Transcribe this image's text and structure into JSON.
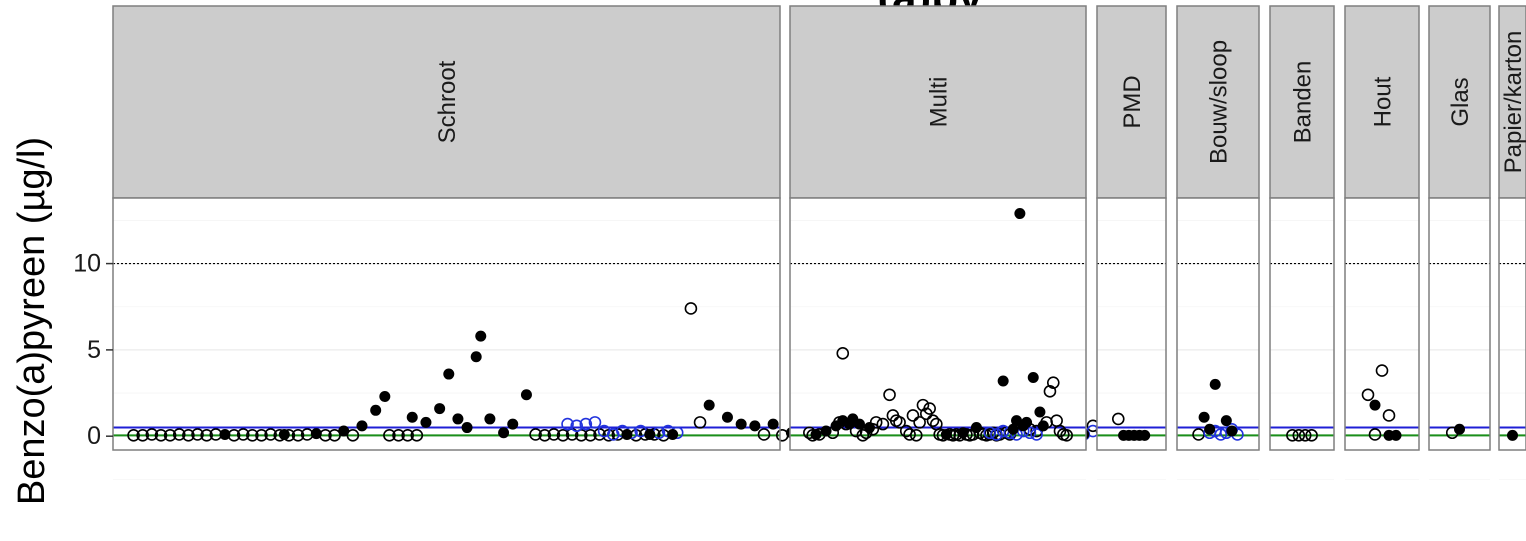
{
  "chart_data": {
    "type": "scatter",
    "title": "(a)py",
    "xlabel": "",
    "ylabel": "Benzo(a)pyreen (µg/l)",
    "ylim": [
      -0.8,
      13.8
    ],
    "yticks": [
      0,
      5,
      10
    ],
    "grid": true,
    "reference_lines": [
      {
        "value": 10,
        "color": "#000000",
        "style": "dotted"
      },
      {
        "value": 0.5,
        "color": "#1f1fd6",
        "style": "solid"
      },
      {
        "value": 0.05,
        "color": "#1a8f1a",
        "style": "solid"
      }
    ],
    "colors": {
      "filled": "#000000",
      "open": "#000000",
      "open_blue": "#2233dd",
      "strip_bg": "#cccccc",
      "panel_border": "#7f7f7f"
    },
    "panels": [
      {
        "name": "Schroot",
        "n": 140,
        "filled": [
          [
            22,
            0.1
          ],
          [
            35,
            0.1
          ],
          [
            42,
            0.15
          ],
          [
            48,
            0.3
          ],
          [
            52,
            0.6
          ],
          [
            55,
            1.5
          ],
          [
            57,
            2.3
          ],
          [
            63,
            1.1
          ],
          [
            66,
            0.8
          ],
          [
            69,
            1.6
          ],
          [
            71,
            3.6
          ],
          [
            73,
            1.0
          ],
          [
            75,
            0.5
          ],
          [
            77,
            4.6
          ],
          [
            78,
            5.8
          ],
          [
            80,
            1.0
          ],
          [
            83,
            0.2
          ],
          [
            85,
            0.7
          ],
          [
            88,
            2.4
          ],
          [
            110,
            0.1
          ],
          [
            115,
            0.1
          ],
          [
            120,
            0.1
          ],
          [
            128,
            1.8
          ],
          [
            132,
            1.1
          ],
          [
            135,
            0.7
          ],
          [
            138,
            0.6
          ],
          [
            142,
            0.7
          ],
          [
            146,
            0.2
          ],
          [
            150,
            0.1
          ],
          [
            156,
            0.6
          ],
          [
            158,
            1.4
          ],
          [
            160,
            2.0
          ],
          [
            164,
            0.6
          ],
          [
            166,
            1.8
          ],
          [
            168,
            0.7
          ],
          [
            170,
            0.8
          ],
          [
            173,
            0.8
          ],
          [
            176,
            0.4
          ],
          [
            182,
            0.2
          ],
          [
            186,
            0.8
          ],
          [
            200,
            0.1
          ],
          [
            205,
            0.5
          ],
          [
            210,
            0.1
          ]
        ],
        "open": [
          [
            2,
            0.05
          ],
          [
            4,
            0.05
          ],
          [
            6,
            0.1
          ],
          [
            8,
            0.05
          ],
          [
            10,
            0.05
          ],
          [
            12,
            0.1
          ],
          [
            14,
            0.05
          ],
          [
            16,
            0.1
          ],
          [
            18,
            0.05
          ],
          [
            20,
            0.1
          ],
          [
            24,
            0.05
          ],
          [
            26,
            0.1
          ],
          [
            28,
            0.05
          ],
          [
            30,
            0.05
          ],
          [
            32,
            0.1
          ],
          [
            34,
            0.05
          ],
          [
            36,
            0.05
          ],
          [
            38,
            0.05
          ],
          [
            40,
            0.1
          ],
          [
            44,
            0.05
          ],
          [
            46,
            0.05
          ],
          [
            50,
            0.05
          ],
          [
            58,
            0.05
          ],
          [
            60,
            0.05
          ],
          [
            62,
            0.05
          ],
          [
            64,
            0.05
          ],
          [
            90,
            0.1
          ],
          [
            92,
            0.05
          ],
          [
            94,
            0.1
          ],
          [
            96,
            0.05
          ],
          [
            98,
            0.1
          ],
          [
            100,
            0.05
          ],
          [
            102,
            0.05
          ],
          [
            104,
            0.1
          ],
          [
            106,
            0.05
          ],
          [
            108,
            0.1
          ],
          [
            112,
            0.05
          ],
          [
            114,
            0.1
          ],
          [
            116,
            0.1
          ],
          [
            118,
            0.05
          ],
          [
            124,
            7.4
          ],
          [
            126,
            0.8
          ],
          [
            140,
            0.1
          ],
          [
            144,
            0.05
          ],
          [
            148,
            0.1
          ],
          [
            152,
            0.05
          ],
          [
            154,
            0.1
          ],
          [
            162,
            0.05
          ],
          [
            178,
            0.1
          ],
          [
            180,
            0.05
          ],
          [
            184,
            0.05
          ],
          [
            188,
            0.05
          ],
          [
            190,
            0.1
          ],
          [
            192,
            0.05
          ],
          [
            194,
            0.1
          ],
          [
            196,
            0.05
          ],
          [
            198,
            0.05
          ],
          [
            202,
            0.1
          ],
          [
            204,
            0.05
          ],
          [
            206,
            0.1
          ],
          [
            208,
            0.05
          ],
          [
            212,
            0.6
          ],
          [
            214,
            0.3
          ],
          [
            216,
            0.9
          ],
          [
            218,
            0.1
          ],
          [
            220,
            0.05
          ],
          [
            222,
            0.1
          ]
        ],
        "open_blue": [
          [
            97,
            0.7
          ],
          [
            99,
            0.6
          ],
          [
            101,
            0.7
          ],
          [
            103,
            0.8
          ],
          [
            105,
            0.3
          ],
          [
            107,
            0.1
          ],
          [
            109,
            0.3
          ],
          [
            111,
            0.2
          ],
          [
            113,
            0.3
          ],
          [
            117,
            0.2
          ],
          [
            119,
            0.3
          ],
          [
            121,
            0.2
          ],
          [
            170,
            0.4
          ],
          [
            172,
            0.2
          ],
          [
            174,
            0.3
          ],
          [
            176,
            0.1
          ],
          [
            178,
            0.2
          ],
          [
            196,
            0.3
          ],
          [
            198,
            0.2
          ],
          [
            200,
            0.3
          ],
          [
            202,
            0.1
          ],
          [
            204,
            0.2
          ],
          [
            206,
            0.3
          ],
          [
            208,
            0.2
          ],
          [
            210,
            0.1
          ],
          [
            212,
            0.3
          ],
          [
            214,
            0.5
          ],
          [
            216,
            0.2
          ],
          [
            218,
            0.1
          ],
          [
            220,
            0.2
          ]
        ]
      },
      {
        "name": "Multi",
        "n": 80,
        "filled": [
          [
            4,
            0.1
          ],
          [
            7,
            0.3
          ],
          [
            10,
            0.6
          ],
          [
            12,
            0.9
          ],
          [
            14,
            0.7
          ],
          [
            15,
            1.0
          ],
          [
            17,
            0.7
          ],
          [
            20,
            0.5
          ],
          [
            43,
            0.1
          ],
          [
            48,
            0.2
          ],
          [
            52,
            0.5
          ],
          [
            60,
            3.2
          ],
          [
            63,
            0.4
          ],
          [
            64,
            0.9
          ],
          [
            65,
            12.9
          ],
          [
            66,
            0.6
          ],
          [
            67,
            0.8
          ],
          [
            69,
            3.4
          ],
          [
            71,
            1.4
          ],
          [
            72,
            0.6
          ]
        ],
        "open": [
          [
            2,
            0.2
          ],
          [
            3,
            0.05
          ],
          [
            5,
            0.1
          ],
          [
            9,
            0.2
          ],
          [
            11,
            0.8
          ],
          [
            12,
            4.8
          ],
          [
            13,
            0.7
          ],
          [
            16,
            0.3
          ],
          [
            18,
            0.05
          ],
          [
            19,
            0.2
          ],
          [
            21,
            0.4
          ],
          [
            22,
            0.8
          ],
          [
            24,
            0.7
          ],
          [
            26,
            2.4
          ],
          [
            27,
            1.2
          ],
          [
            28,
            0.9
          ],
          [
            29,
            0.8
          ],
          [
            31,
            0.3
          ],
          [
            32,
            0.1
          ],
          [
            33,
            1.2
          ],
          [
            34,
            0.05
          ],
          [
            35,
            0.8
          ],
          [
            36,
            1.8
          ],
          [
            37,
            1.3
          ],
          [
            38,
            1.6
          ],
          [
            39,
            0.9
          ],
          [
            40,
            0.7
          ],
          [
            41,
            0.1
          ],
          [
            42,
            0.05
          ],
          [
            44,
            0.1
          ],
          [
            45,
            0.05
          ],
          [
            46,
            0.1
          ],
          [
            47,
            0.05
          ],
          [
            49,
            0.1
          ],
          [
            50,
            0.05
          ],
          [
            51,
            0.1
          ],
          [
            53,
            0.2
          ],
          [
            54,
            0.1
          ],
          [
            55,
            0.05
          ],
          [
            56,
            0.1
          ],
          [
            57,
            0.2
          ],
          [
            58,
            0.05
          ],
          [
            59,
            0.1
          ],
          [
            61,
            0.2
          ],
          [
            62,
            0.1
          ],
          [
            68,
            0.4
          ],
          [
            70,
            0.3
          ],
          [
            73,
            0.8
          ],
          [
            74,
            2.6
          ],
          [
            75,
            3.1
          ],
          [
            76,
            0.9
          ],
          [
            77,
            0.3
          ],
          [
            78,
            0.1
          ],
          [
            79,
            0.05
          ]
        ],
        "open_blue": [
          [
            56,
            0.2
          ],
          [
            58,
            0.1
          ],
          [
            60,
            0.3
          ],
          [
            62,
            0.2
          ],
          [
            64,
            0.1
          ],
          [
            66,
            0.3
          ],
          [
            68,
            0.2
          ],
          [
            70,
            0.1
          ]
        ]
      },
      {
        "name": "PMD",
        "n": 8,
        "filled": [
          [
            3,
            0.05
          ],
          [
            4,
            0.05
          ],
          [
            5,
            0.05
          ],
          [
            6,
            0.05
          ],
          [
            7,
            0.05
          ]
        ],
        "open": [
          [
            2,
            1.0
          ]
        ],
        "open_blue": []
      },
      {
        "name": "Bouw/sloop",
        "n": 10,
        "filled": [
          [
            3,
            1.1
          ],
          [
            4,
            0.4
          ],
          [
            5,
            3.0
          ],
          [
            7,
            0.9
          ],
          [
            8,
            0.3
          ]
        ],
        "open": [
          [
            2,
            0.1
          ]
        ],
        "open_blue": [
          [
            4,
            0.2
          ],
          [
            5,
            0.3
          ],
          [
            6,
            0.1
          ],
          [
            7,
            0.2
          ],
          [
            8,
            0.4
          ],
          [
            9,
            0.1
          ]
        ]
      },
      {
        "name": "Banden",
        "n": 6,
        "filled": [],
        "open": [
          [
            2,
            0.05
          ],
          [
            3,
            0.05
          ],
          [
            4,
            0.05
          ],
          [
            5,
            0.05
          ]
        ],
        "open_blue": []
      },
      {
        "name": "Hout",
        "n": 7,
        "filled": [
          [
            3,
            1.8
          ],
          [
            5,
            0.05
          ],
          [
            6,
            0.05
          ]
        ],
        "open": [
          [
            2,
            2.4
          ],
          [
            4,
            3.8
          ],
          [
            5,
            1.2
          ],
          [
            3,
            0.1
          ]
        ],
        "open_blue": []
      },
      {
        "name": "Glas",
        "n": 5,
        "filled": [
          [
            3,
            0.4
          ]
        ],
        "open": [
          [
            2,
            0.2
          ]
        ],
        "open_blue": []
      },
      {
        "name": "Papier/karton",
        "n": 3,
        "filled": [
          [
            2,
            0.05
          ]
        ],
        "open": [],
        "open_blue": []
      }
    ]
  }
}
